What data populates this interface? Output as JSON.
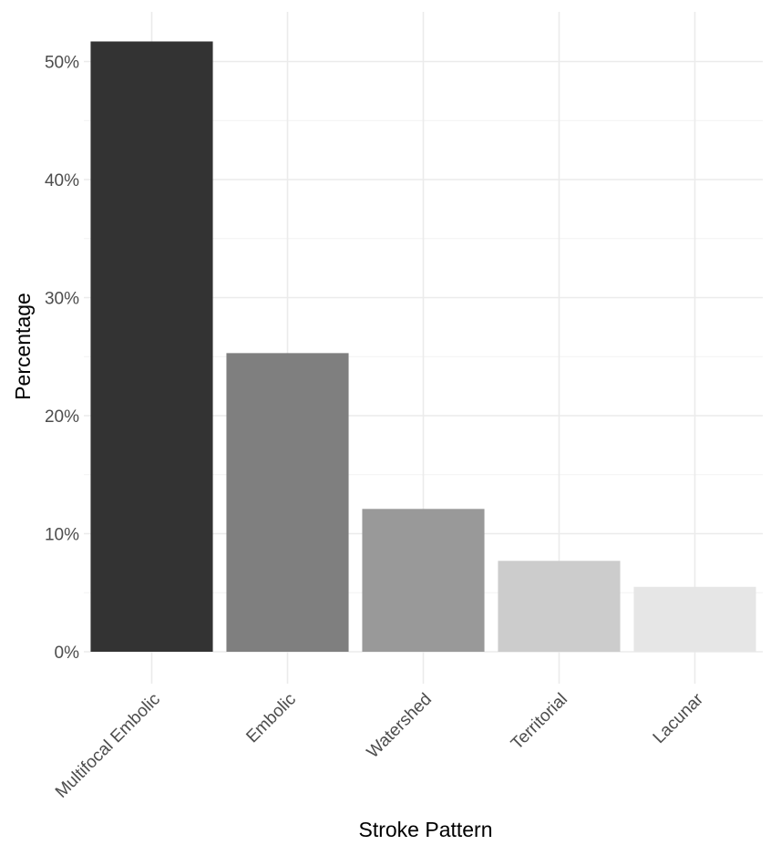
{
  "chart_data": {
    "type": "bar",
    "title": "",
    "xlabel": "Stroke Pattern",
    "ylabel": "Percentage",
    "categories": [
      "Multifocal Embolic",
      "Embolic",
      "Watershed",
      "Territorial",
      "Lacunar"
    ],
    "values": [
      51.7,
      25.3,
      12.1,
      7.7,
      5.5
    ],
    "value_unit": "%",
    "ylim": [
      0,
      53
    ],
    "yticks": [
      0,
      10,
      20,
      30,
      40,
      50
    ],
    "ytick_labels": [
      "0%",
      "10%",
      "20%",
      "30%",
      "40%",
      "50%"
    ],
    "bar_colors": [
      "#333333",
      "#7f7f7f",
      "#999999",
      "#cccccc",
      "#e6e6e6"
    ],
    "grid": true,
    "legend": "none"
  }
}
